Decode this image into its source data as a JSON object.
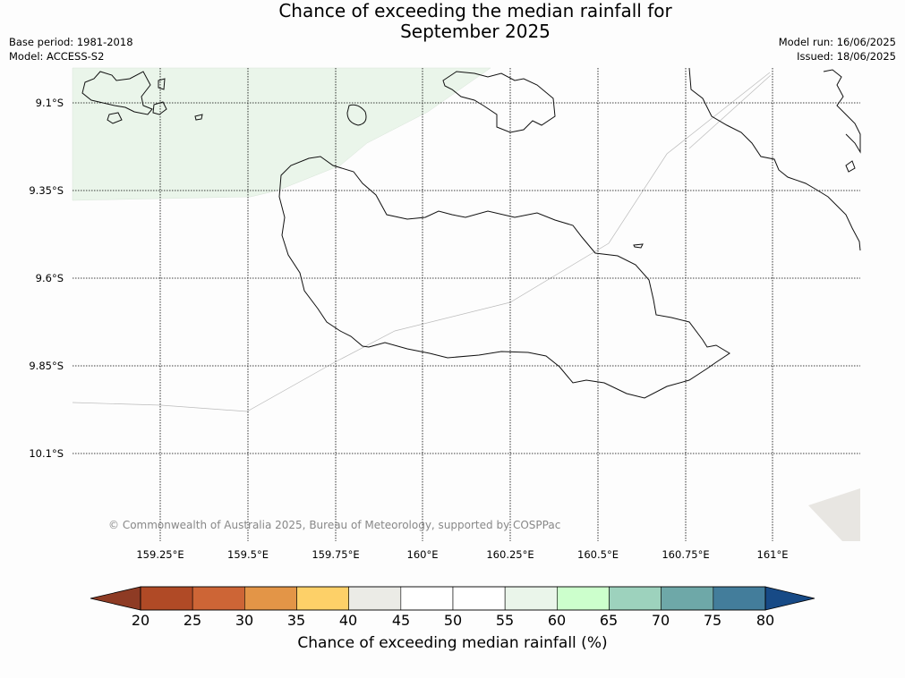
{
  "title": {
    "line1": "Chance of exceeding the median rainfall for",
    "line2": "September 2025"
  },
  "meta": {
    "base_period": "Base period: 1981-2018",
    "model": "Model: ACCESS-S2",
    "model_run": "Model run: 16/06/2025",
    "issued": "Issued: 18/06/2025"
  },
  "copyright": "© Commonwealth of Australia 2025, Bureau of Meteorology, supported by COSPPac",
  "map": {
    "lat_labels": [
      "9.1°S",
      "9.35°S",
      "9.6°S",
      "9.85°S",
      "10.1°S"
    ],
    "lon_labels": [
      "159.25°E",
      "159.5°E",
      "159.75°E",
      "160°E",
      "160.25°E",
      "160.5°E",
      "160.75°E",
      "161°E"
    ]
  },
  "colorbar": {
    "label": "Chance of exceeding median rainfall (%)",
    "ticks": [
      "20",
      "25",
      "30",
      "35",
      "40",
      "45",
      "50",
      "55",
      "60",
      "65",
      "70",
      "75",
      "80"
    ],
    "colors": [
      "#b04a26",
      "#cd6536",
      "#e39547",
      "#fdd068",
      "#ebebe6",
      "#ffffff",
      "#ffffff",
      "#eaf5ea",
      "#ccffcc",
      "#9dd2bd",
      "#6ea8a8",
      "#437d9b"
    ],
    "under_color": "#8e3b24",
    "over_color": "#174a86",
    "region_color": "#eaf5ea"
  }
}
